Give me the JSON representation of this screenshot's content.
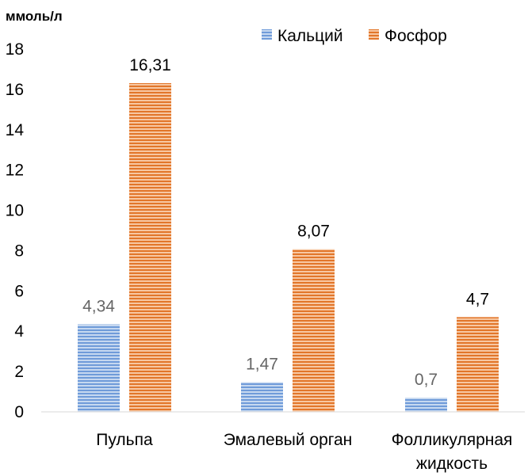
{
  "chart_data": {
    "type": "bar",
    "ylabel": "ммоль/л",
    "ylim": [
      0,
      18
    ],
    "ytick_step": 2,
    "grid": false,
    "legend_position": "top-right",
    "categories": [
      [
        "Пульпа"
      ],
      [
        "Эмалевый орган"
      ],
      [
        "Фолликулярная",
        "жидкость"
      ]
    ],
    "series": [
      {
        "name": "Кальций",
        "color": "#6f9bd9",
        "label_color": "#666666",
        "values": [
          4.34,
          1.47,
          0.7
        ],
        "labels": [
          "4,34",
          "1,47",
          "0,7"
        ]
      },
      {
        "name": "Фосфор",
        "color": "#ed8a3f",
        "label_color": "#000000",
        "values": [
          16.31,
          8.07,
          4.7
        ],
        "labels": [
          "16,31",
          "8,07",
          "4,7"
        ]
      }
    ]
  }
}
